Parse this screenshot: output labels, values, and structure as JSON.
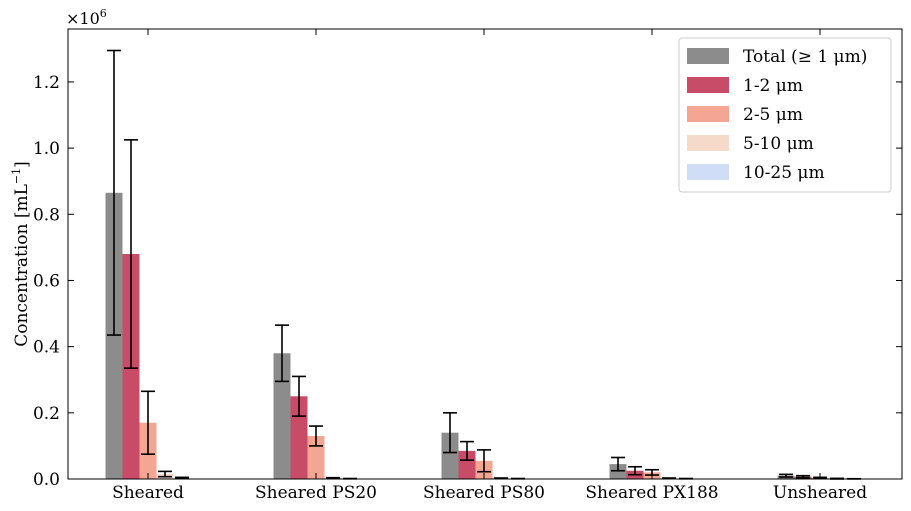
{
  "chart_data": {
    "type": "bar",
    "categories": [
      "Sheared",
      "Sheared PS20",
      "Sheared PS80",
      "Sheared PX188",
      "Unsheared"
    ],
    "ylabel_main": "Concentration [mL",
    "ylabel_sup": "−1",
    "ylabel_end": "]",
    "xlabel": "",
    "multiplier_base": "×10",
    "multiplier_exp": "6",
    "ylim": [
      0,
      1.36
    ],
    "yticks": [
      "0.0",
      "0.2",
      "0.4",
      "0.6",
      "0.8",
      "1.0",
      "1.2"
    ],
    "ytick_values": [
      0,
      0.2,
      0.4,
      0.6,
      0.8,
      1.0,
      1.2
    ],
    "legend_position": "top-right",
    "grid": false,
    "series": [
      {
        "name": "Total (≥ 1 μm)",
        "color": "#8c8c8c",
        "values": [
          0.865,
          0.38,
          0.14,
          0.045,
          0.01
        ],
        "errors": [
          0.43,
          0.085,
          0.06,
          0.02,
          0.004
        ]
      },
      {
        "name": "1-2 μm",
        "color": "#c84b67",
        "values": [
          0.68,
          0.25,
          0.085,
          0.025,
          0.007
        ],
        "errors": [
          0.345,
          0.06,
          0.028,
          0.012,
          0.003
        ]
      },
      {
        "name": "2-5 μm",
        "color": "#f5a692",
        "values": [
          0.17,
          0.13,
          0.055,
          0.02,
          0.003
        ],
        "errors": [
          0.095,
          0.03,
          0.033,
          0.008,
          0.002
        ]
      },
      {
        "name": "5-10 μm",
        "color": "#f5d9c9",
        "values": [
          0.015,
          0.003,
          0.002,
          0.002,
          0.001
        ],
        "errors": [
          0.008,
          0.001,
          0.001,
          0.001,
          0.001
        ]
      },
      {
        "name": "10-25 μm",
        "color": "#cfddf6",
        "values": [
          0.003,
          0.001,
          0.001,
          0.001,
          0.0005
        ],
        "errors": [
          0.002,
          0.0005,
          0.0005,
          0.0005,
          0.0003
        ]
      }
    ]
  }
}
